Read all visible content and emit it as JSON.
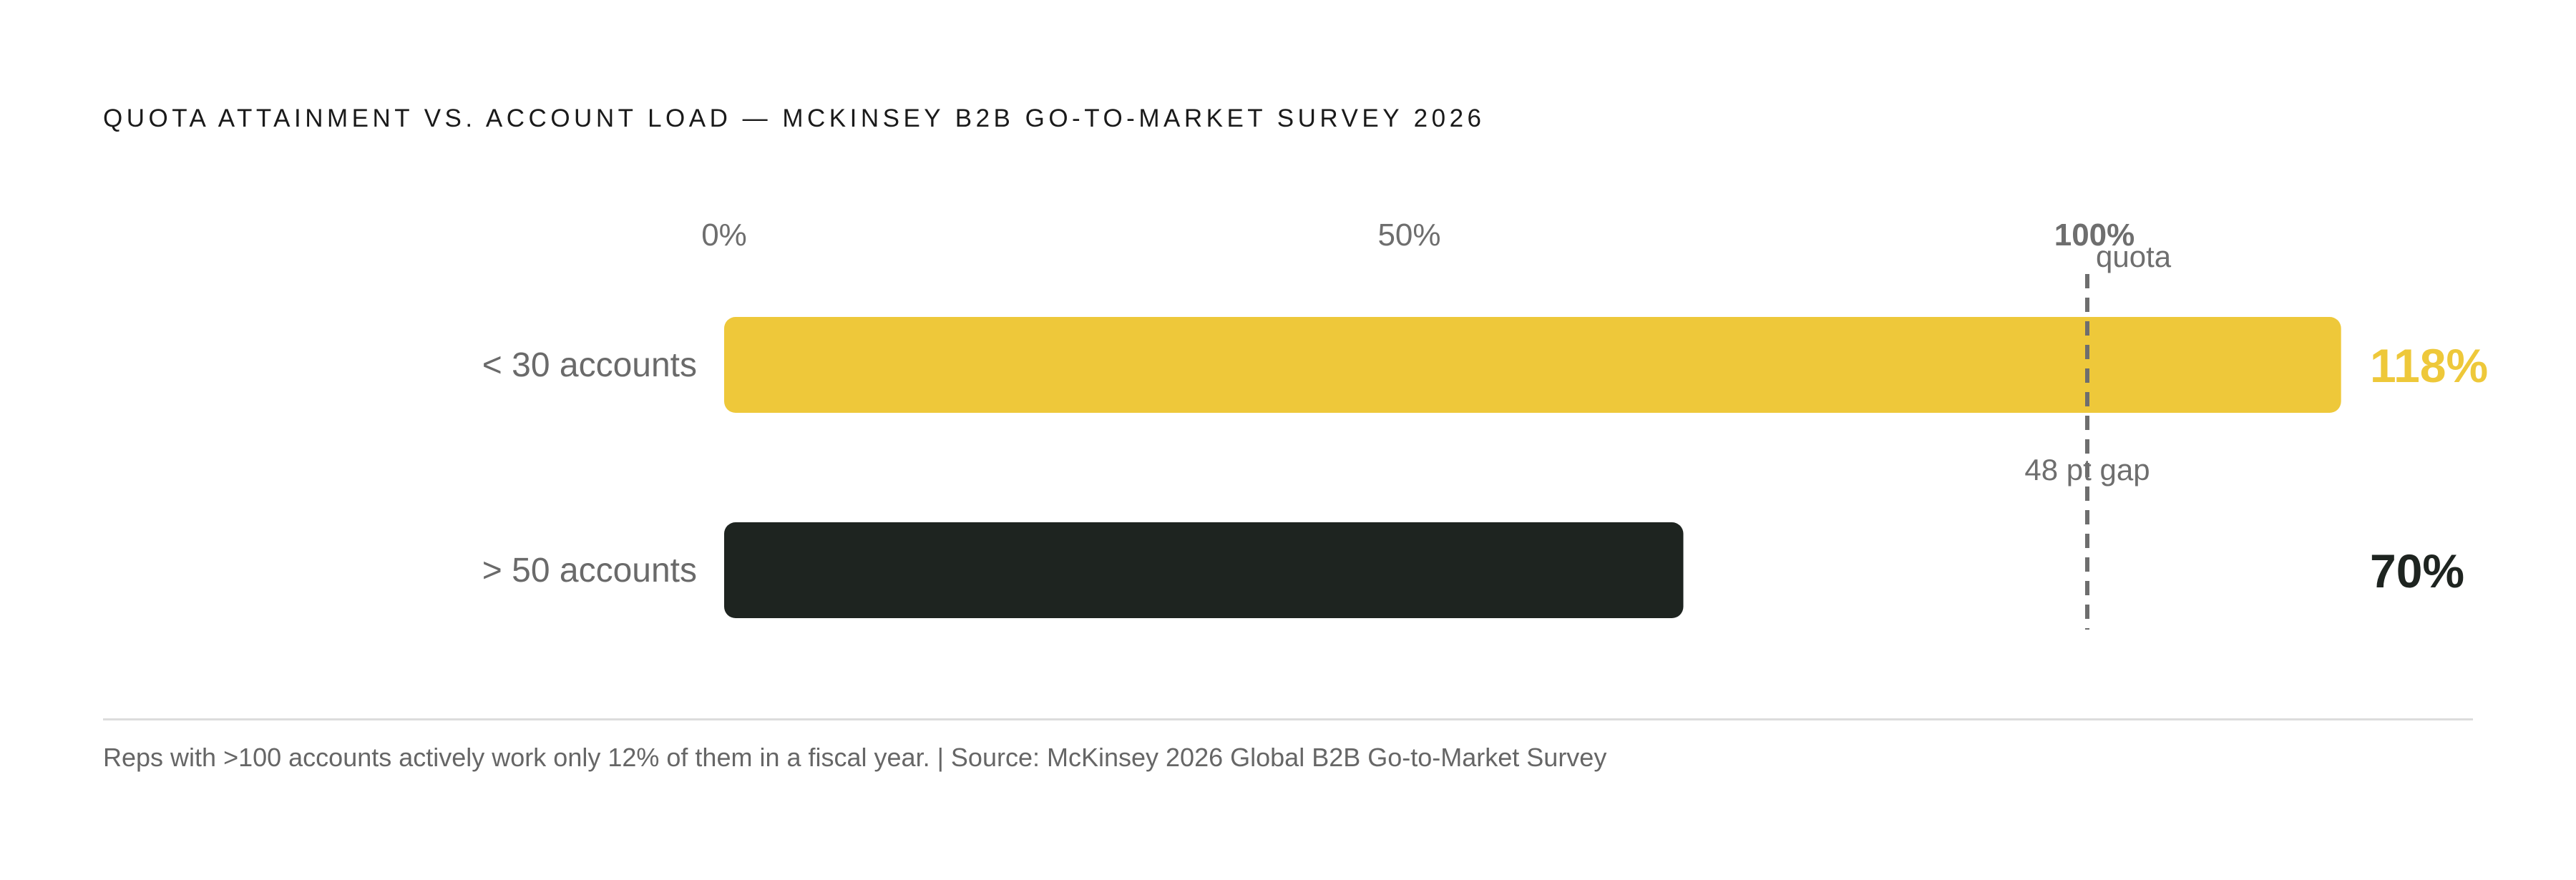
{
  "title": "QUOTA ATTAINMENT VS. ACCOUNT LOAD — MCKINSEY B2B GO-TO-MARKET SURVEY 2026",
  "footnote": "Reps with >100 accounts actively work only 12% of them in a fiscal year.  |  Source: McKinsey 2026 Global B2B Go-to-Market Survey",
  "chart_data": {
    "type": "bar",
    "orientation": "horizontal",
    "categories": [
      "< 30 accounts",
      "> 50 accounts"
    ],
    "values": [
      118,
      70
    ],
    "value_labels": [
      "118%",
      "70%"
    ],
    "colors": [
      "#EEC83A",
      "#1E2420"
    ],
    "xlim": [
      0,
      118
    ],
    "xticks": [
      0,
      50,
      100
    ],
    "xtick_labels": [
      "0%",
      "50%",
      "100%"
    ],
    "reference_line": {
      "value": 100,
      "label": "quota"
    },
    "annotation": "48 pt gap"
  }
}
